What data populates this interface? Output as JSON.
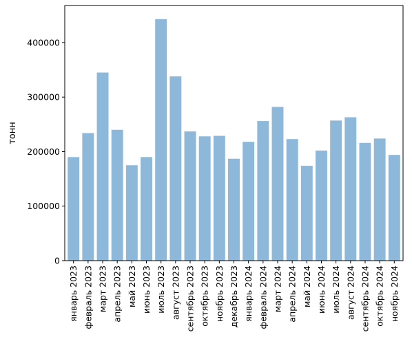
{
  "chart_data": {
    "type": "bar",
    "title": "",
    "xlabel": "",
    "ylabel": "тонн",
    "ylim": [
      0,
      468000
    ],
    "yticks": [
      0,
      100000,
      200000,
      300000,
      400000
    ],
    "ytick_labels": [
      "0",
      "100000",
      "200000",
      "300000",
      "400000"
    ],
    "grid": false,
    "bar_color": "#8db8da",
    "categories": [
      "январь 2023",
      "февраль 2023",
      "март 2023",
      "апрель 2023",
      "май 2023",
      "июнь 2023",
      "июль 2023",
      "август 2023",
      "сентябрь 2023",
      "октябрь 2023",
      "ноябрь 2023",
      "декабрь 2023",
      "январь 2024",
      "февраль 2024",
      "март 2024",
      "апрель 2024",
      "май 2024",
      "июнь 2024",
      "июль 2024",
      "август 2024",
      "сентябрь 2024",
      "октябрь 2024",
      "ноябрь 2024"
    ],
    "values": [
      190000,
      234000,
      345000,
      240000,
      175000,
      190000,
      443000,
      338000,
      237000,
      228000,
      229000,
      187000,
      218000,
      256000,
      282000,
      223000,
      174000,
      202000,
      257000,
      263000,
      216000,
      224000,
      194000
    ]
  }
}
